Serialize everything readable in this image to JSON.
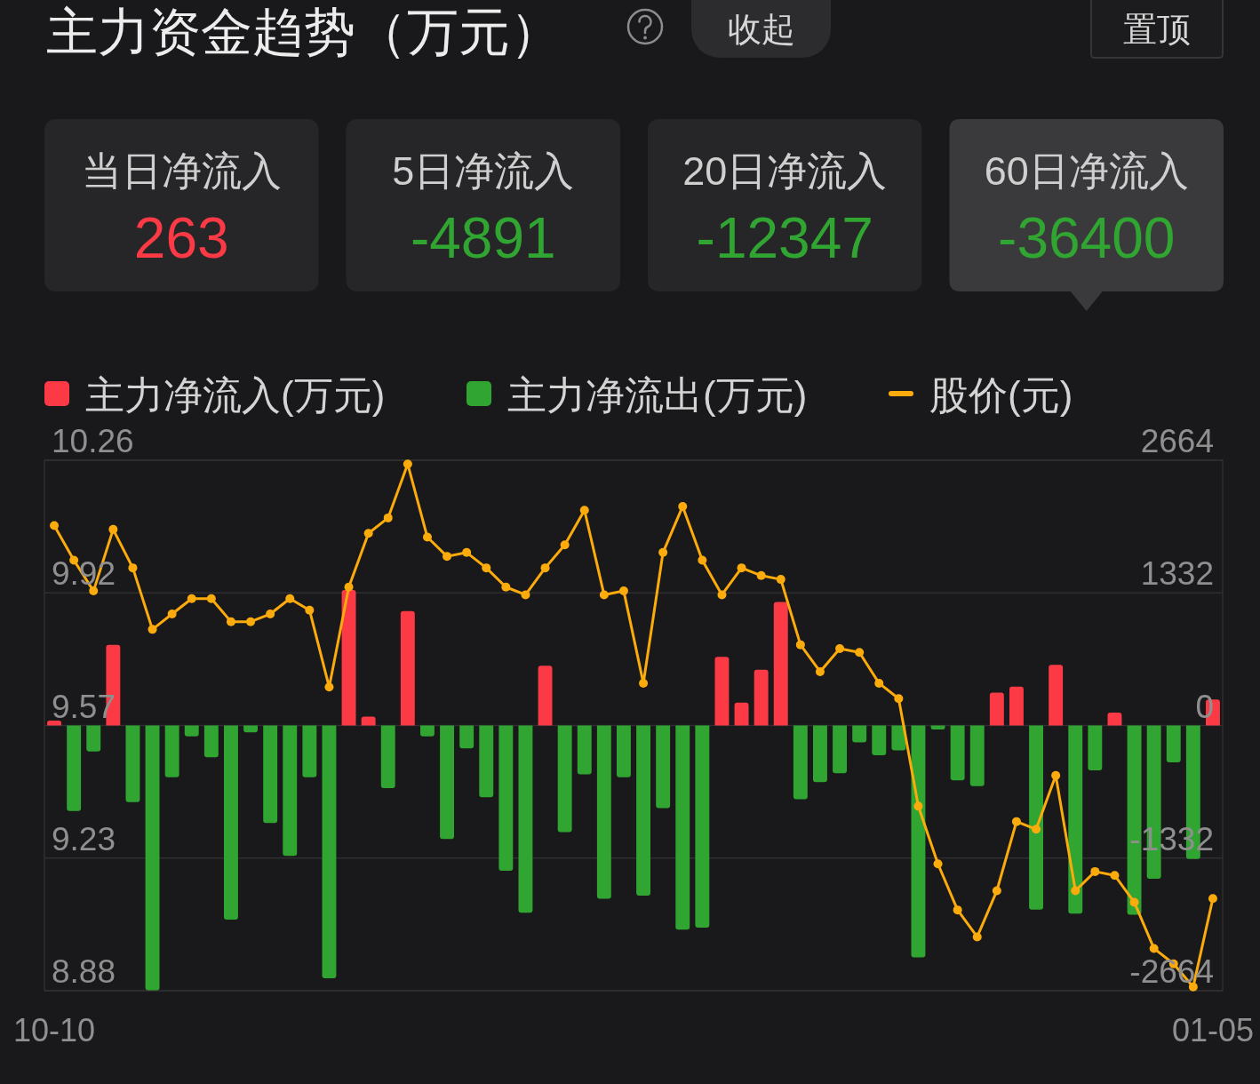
{
  "chart_data": [
    {
      "type": "other",
      "title": "主力资金趋势（万元）",
      "annotations": [
        "收起",
        "置顶"
      ],
      "data_labels": true,
      "categories": [
        "当日净流入",
        "5日净流入",
        "20日净流入",
        "60日净流入"
      ],
      "values": [
        263,
        -4891,
        -12347,
        -36400
      ],
      "colors": [
        "#262628",
        "#262628",
        "#262628",
        "#3a3a3c"
      ]
    },
    {
      "type": "bar",
      "legend": "top",
      "grid": "y",
      "marker": "circle",
      "categories": [
        "10-10",
        null,
        null,
        null,
        null,
        null,
        null,
        null,
        null,
        null,
        null,
        null,
        null,
        null,
        null,
        null,
        null,
        null,
        null,
        null,
        null,
        null,
        null,
        null,
        null,
        null,
        null,
        null,
        null,
        null,
        null,
        null,
        null,
        null,
        null,
        null,
        null,
        null,
        null,
        null,
        null,
        null,
        null,
        null,
        null,
        null,
        null,
        null,
        null,
        null,
        null,
        null,
        null,
        null,
        null,
        null,
        null,
        null,
        null,
        "01-05"
      ],
      "ylim": [
        8.88,
        10.26
      ],
      "yticks": [
        8.88,
        {
          "value": 9.225,
          "label": "9.23"
        },
        9.57,
        {
          "value": 9.915,
          "label": "9.92"
        },
        10.26
      ],
      "y2lim": [
        -2664,
        2664
      ],
      "y2ticks": [
        -2664,
        -1332,
        0,
        1332,
        2664
      ],
      "series": [
        {
          "name": "主力净流入(万元)",
          "type": "bar",
          "axis": "y2",
          "color": "#fc3a46",
          "values": [
            50,
            null,
            null,
            810,
            null,
            null,
            null,
            null,
            null,
            null,
            null,
            null,
            null,
            null,
            null,
            1360,
            90,
            null,
            1150,
            null,
            null,
            null,
            null,
            null,
            null,
            600,
            null,
            null,
            null,
            null,
            null,
            null,
            null,
            null,
            690,
            230,
            560,
            1240,
            null,
            null,
            null,
            null,
            null,
            null,
            null,
            null,
            null,
            null,
            330,
            390,
            null,
            610,
            null,
            null,
            130,
            null,
            null,
            null,
            null,
            260
          ]
        },
        {
          "name": "主力净流出(万元)",
          "type": "bar",
          "axis": "y2",
          "color": "#30a531",
          "values": [
            null,
            -860,
            -260,
            null,
            -770,
            -2660,
            -520,
            -110,
            -320,
            -1950,
            -70,
            -980,
            -1310,
            -520,
            -2540,
            null,
            null,
            -630,
            null,
            -110,
            -1140,
            -230,
            -720,
            -1460,
            -1880,
            null,
            -1070,
            -490,
            -1740,
            -520,
            -1710,
            -830,
            -2050,
            -2030,
            null,
            null,
            null,
            null,
            -740,
            -570,
            -480,
            -170,
            -300,
            -250,
            -2330,
            -40,
            -550,
            -610,
            null,
            null,
            -1850,
            null,
            -1890,
            -450,
            null,
            -1900,
            -1540,
            -370,
            -1340,
            null
          ]
        },
        {
          "name": "股价(元)",
          "type": "line",
          "color": "#fcab0c",
          "values": [
            10.09,
            10.0,
            9.92,
            10.08,
            9.98,
            9.82,
            9.86,
            9.9,
            9.9,
            9.84,
            9.84,
            9.86,
            9.9,
            9.87,
            9.67,
            9.93,
            10.07,
            10.11,
            10.25,
            10.06,
            10.01,
            10.02,
            9.98,
            9.93,
            9.91,
            9.98,
            10.04,
            10.13,
            9.91,
            9.92,
            9.68,
            10.02,
            10.14,
            10.0,
            9.91,
            9.98,
            9.96,
            9.95,
            9.78,
            9.71,
            9.77,
            9.76,
            9.68,
            9.64,
            9.36,
            9.21,
            9.09,
            9.02,
            9.14,
            9.32,
            9.3,
            9.44,
            9.14,
            9.19,
            9.18,
            9.11,
            8.99,
            8.95,
            8.89,
            9.12
          ]
        }
      ]
    }
  ]
}
